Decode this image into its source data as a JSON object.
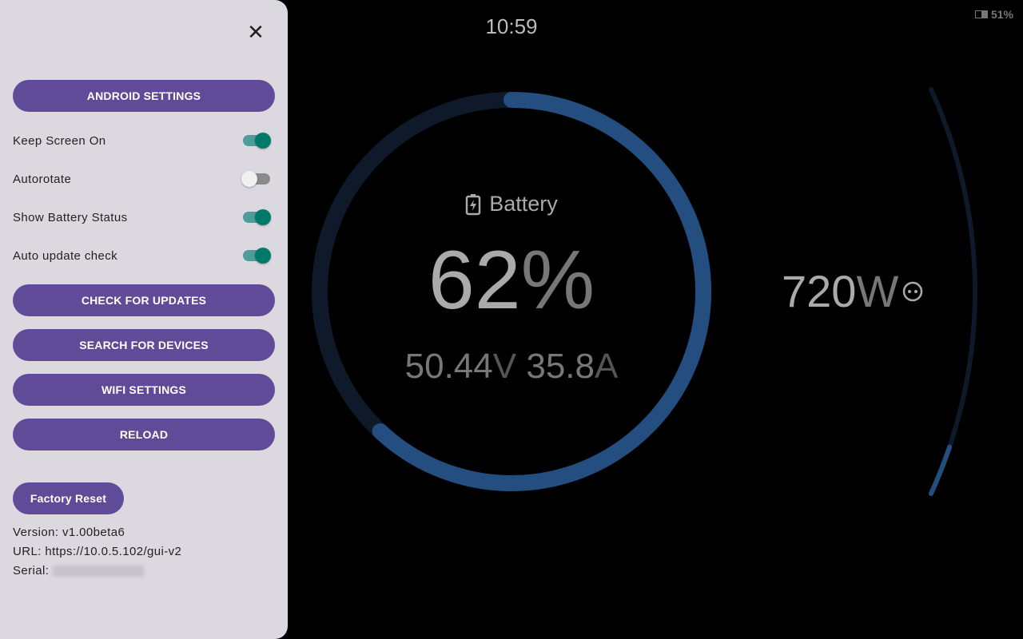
{
  "status_bar": {
    "clock": "10:59",
    "battery_percent": "51%",
    "battery_icon": "battery-icon"
  },
  "drawer": {
    "close_icon": "close-icon",
    "buttons": {
      "android_settings": "ANDROID SETTINGS",
      "check_updates": "CHECK FOR UPDATES",
      "search_devices": "SEARCH FOR DEVICES",
      "wifi_settings": "WIFI SETTINGS",
      "reload": "RELOAD",
      "factory_reset": "Factory Reset"
    },
    "toggles": [
      {
        "label": "Keep Screen On",
        "on": true
      },
      {
        "label": "Autorotate",
        "on": false
      },
      {
        "label": "Show Battery Status",
        "on": true
      },
      {
        "label": "Auto update check",
        "on": true
      }
    ],
    "version": "Version: v1.00beta6",
    "url": "URL: https://10.0.5.102/gui-v2",
    "serial_label": "Serial:"
  },
  "battery": {
    "label": "Battery",
    "icon": "battery-charging-icon",
    "soc": "62",
    "soc_unit": "%",
    "soc_fraction": 0.62,
    "voltage": "50.44",
    "voltage_unit": "V",
    "current": "35.8",
    "current_unit": "A"
  },
  "power": {
    "value": "720",
    "unit": "W",
    "icon": "ac-outlet-icon",
    "level_fraction": 0.12
  },
  "colors": {
    "accent": "#5f4b97",
    "toggle_on": "#00796b",
    "gauge_progress": "#234e7f",
    "gauge_track": "#0e1a2a"
  }
}
